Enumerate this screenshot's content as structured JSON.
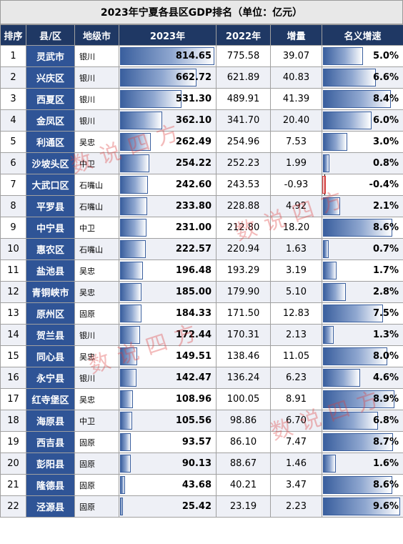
{
  "title": "2023年宁夏各县区GDP排名（单位：亿元）",
  "headers": [
    "排序",
    "县/区",
    "地级市",
    "2023年",
    "2022年",
    "增量",
    "名义增速"
  ],
  "watermark": "数说四方",
  "colors": {
    "header_bg": "#1f3864",
    "county_bg": "#2f5496",
    "bar_blue": "#3a5f9e",
    "bar_red": "#d23b3b"
  },
  "chart_data": {
    "type": "table",
    "rows": [
      {
        "rank": "1",
        "county": "灵武市",
        "city": "银川",
        "gdp2023": "814.65",
        "gdp2022": "775.58",
        "increase": "39.07",
        "growth": "5.0%"
      },
      {
        "rank": "2",
        "county": "兴庆区",
        "city": "银川",
        "gdp2023": "662.72",
        "gdp2022": "621.89",
        "increase": "40.83",
        "growth": "6.6%"
      },
      {
        "rank": "3",
        "county": "西夏区",
        "city": "银川",
        "gdp2023": "531.30",
        "gdp2022": "489.91",
        "increase": "41.39",
        "growth": "8.4%"
      },
      {
        "rank": "4",
        "county": "金凤区",
        "city": "银川",
        "gdp2023": "362.10",
        "gdp2022": "341.70",
        "increase": "20.40",
        "growth": "6.0%"
      },
      {
        "rank": "5",
        "county": "利通区",
        "city": "吴忠",
        "gdp2023": "262.49",
        "gdp2022": "254.96",
        "increase": "7.53",
        "growth": "3.0%"
      },
      {
        "rank": "6",
        "county": "沙坡头区",
        "city": "中卫",
        "gdp2023": "254.22",
        "gdp2022": "252.23",
        "increase": "1.99",
        "growth": "0.8%"
      },
      {
        "rank": "7",
        "county": "大武口区",
        "city": "石嘴山",
        "gdp2023": "242.60",
        "gdp2022": "243.53",
        "increase": "-0.93",
        "growth": "-0.4%"
      },
      {
        "rank": "8",
        "county": "平罗县",
        "city": "石嘴山",
        "gdp2023": "233.80",
        "gdp2022": "228.88",
        "increase": "4.92",
        "growth": "2.1%"
      },
      {
        "rank": "9",
        "county": "中宁县",
        "city": "中卫",
        "gdp2023": "231.00",
        "gdp2022": "212.80",
        "increase": "18.20",
        "growth": "8.6%"
      },
      {
        "rank": "10",
        "county": "惠农区",
        "city": "石嘴山",
        "gdp2023": "222.57",
        "gdp2022": "220.94",
        "increase": "1.63",
        "growth": "0.7%"
      },
      {
        "rank": "11",
        "county": "盐池县",
        "city": "吴忠",
        "gdp2023": "196.48",
        "gdp2022": "193.29",
        "increase": "3.19",
        "growth": "1.7%"
      },
      {
        "rank": "12",
        "county": "青铜峡市",
        "city": "吴忠",
        "gdp2023": "185.00",
        "gdp2022": "179.90",
        "increase": "5.10",
        "growth": "2.8%"
      },
      {
        "rank": "13",
        "county": "原州区",
        "city": "固原",
        "gdp2023": "184.33",
        "gdp2022": "171.50",
        "increase": "12.83",
        "growth": "7.5%"
      },
      {
        "rank": "14",
        "county": "贺兰县",
        "city": "银川",
        "gdp2023": "172.44",
        "gdp2022": "170.31",
        "increase": "2.13",
        "growth": "1.3%"
      },
      {
        "rank": "15",
        "county": "同心县",
        "city": "吴忠",
        "gdp2023": "149.51",
        "gdp2022": "138.46",
        "increase": "11.05",
        "growth": "8.0%"
      },
      {
        "rank": "16",
        "county": "永宁县",
        "city": "银川",
        "gdp2023": "142.47",
        "gdp2022": "136.24",
        "increase": "6.23",
        "growth": "4.6%"
      },
      {
        "rank": "17",
        "county": "红寺堡区",
        "city": "吴忠",
        "gdp2023": "108.96",
        "gdp2022": "100.05",
        "increase": "8.91",
        "growth": "8.9%"
      },
      {
        "rank": "18",
        "county": "海原县",
        "city": "中卫",
        "gdp2023": "105.56",
        "gdp2022": "98.86",
        "increase": "6.70",
        "growth": "6.8%"
      },
      {
        "rank": "19",
        "county": "西吉县",
        "city": "固原",
        "gdp2023": "93.57",
        "gdp2022": "86.10",
        "increase": "7.47",
        "growth": "8.7%"
      },
      {
        "rank": "20",
        "county": "彭阳县",
        "city": "固原",
        "gdp2023": "90.13",
        "gdp2022": "88.67",
        "increase": "1.46",
        "growth": "1.6%"
      },
      {
        "rank": "21",
        "county": "隆德县",
        "city": "固原",
        "gdp2023": "43.68",
        "gdp2022": "40.21",
        "increase": "3.47",
        "growth": "8.6%"
      },
      {
        "rank": "22",
        "county": "泾源县",
        "city": "固原",
        "gdp2023": "25.42",
        "gdp2022": "23.19",
        "increase": "2.23",
        "growth": "9.6%"
      }
    ]
  }
}
